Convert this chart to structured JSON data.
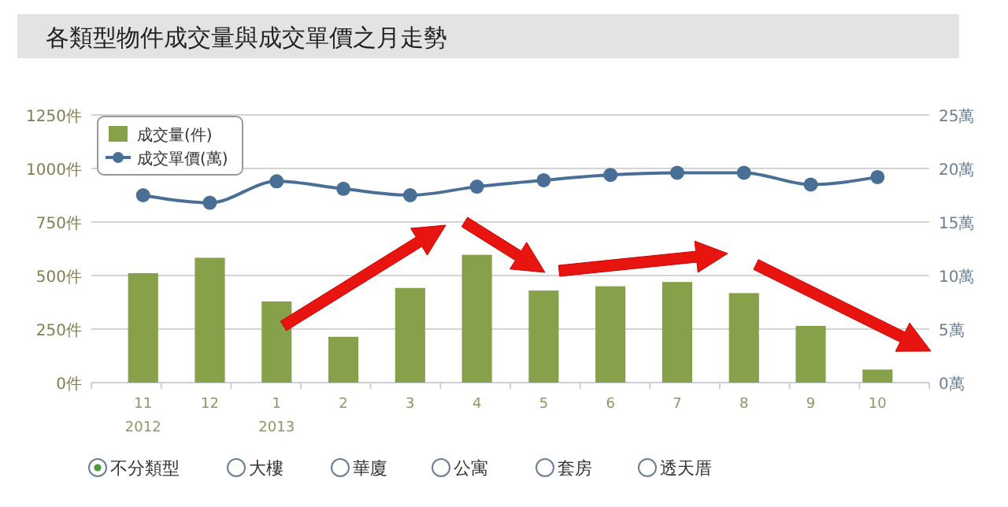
{
  "chart_data": {
    "type": "bar",
    "title": "各類型物件成交量與成交單價之月走勢",
    "categories": [
      "11\n2012",
      "12",
      "1\n2013",
      "2",
      "3",
      "4",
      "5",
      "6",
      "7",
      "8",
      "9",
      "10"
    ],
    "series": [
      {
        "name": "成交量(件)",
        "color": "#87a04a",
        "values": [
          511,
          583,
          379,
          214,
          442,
          597,
          430,
          450,
          470,
          418,
          265,
          61
        ]
      },
      {
        "name": "成交單價(萬)",
        "type": "line",
        "axis": "y2",
        "color": "#4a6f96",
        "values": [
          17.5,
          16.8,
          18.8,
          18.1,
          17.5,
          18.3,
          18.9,
          19.4,
          19.6,
          19.6,
          18.5,
          19.2
        ]
      }
    ],
    "ylim": [
      0,
      1250
    ],
    "yticks": [
      {
        "value": 0,
        "label": "0件"
      },
      {
        "value": 250,
        "label": "250件"
      },
      {
        "value": 500,
        "label": "500件"
      },
      {
        "value": 750,
        "label": "750件"
      },
      {
        "value": 1000,
        "label": "1000件"
      },
      {
        "value": 1250,
        "label": "1250件"
      }
    ],
    "y2lim": [
      0,
      25
    ],
    "y2ticks": [
      {
        "value": 0,
        "label": "0萬"
      },
      {
        "value": 5,
        "label": "5萬"
      },
      {
        "value": 10,
        "label": "10萬"
      },
      {
        "value": 15,
        "label": "15萬"
      },
      {
        "value": 20,
        "label": "20萬"
      },
      {
        "value": 25,
        "label": "25萬"
      }
    ],
    "grid": "y",
    "legend": "top left",
    "marker": "circle",
    "annotations": [
      "不分類型",
      "大樓",
      "華廈",
      "公寓",
      "套房",
      "透天厝"
    ]
  }
}
